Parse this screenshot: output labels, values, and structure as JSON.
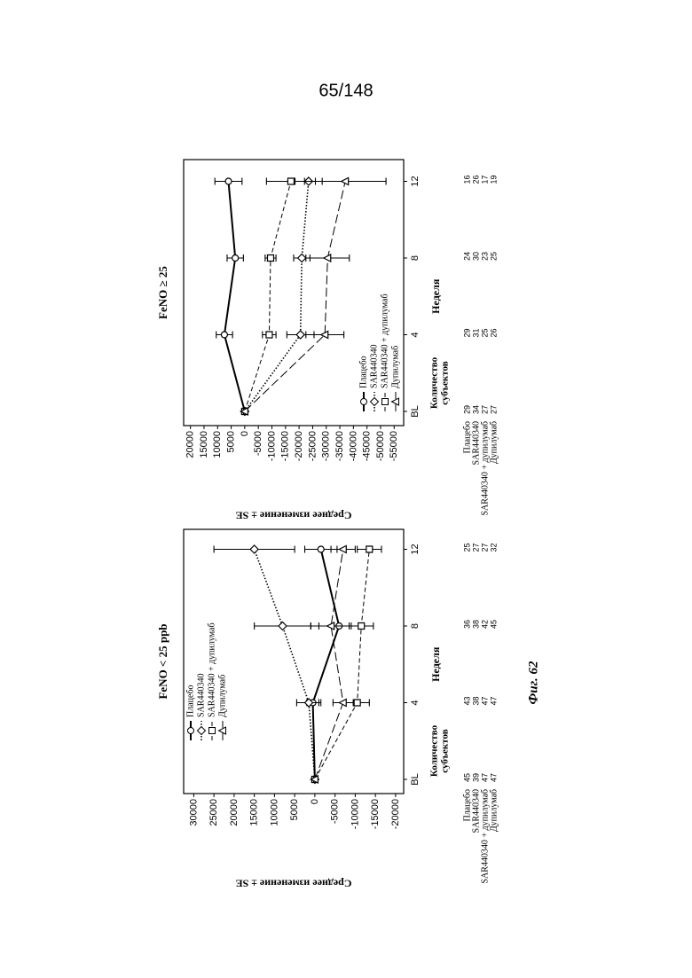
{
  "page_number": "65/148",
  "caption": "Фиг. 62",
  "chart_data": [
    {
      "type": "line",
      "title": "FeNO < 25 ppb",
      "xlabel": "Неделя",
      "ylabel": "Среднее изменение ± SE",
      "categories": [
        "BL",
        "4",
        "8",
        "12"
      ],
      "ylim": [
        -22000,
        32500
      ],
      "yticks": [
        30000,
        25000,
        20000,
        15000,
        10000,
        5000,
        0,
        -5000,
        -10000,
        -15000,
        -20000
      ],
      "legend": "upper left",
      "counts_header": [
        "Количество",
        "субъектов"
      ],
      "series": [
        {
          "name": "Плацебо",
          "color": "#000000",
          "marker": "circle",
          "linestyle": "solid",
          "values": [
            0,
            500,
            -6000,
            -1500
          ],
          "errors": [
            300,
            1500,
            5000,
            4000
          ],
          "counts": [
            45,
            43,
            36,
            25
          ]
        },
        {
          "name": "SAR440340",
          "color": "#000000",
          "marker": "diamond",
          "linestyle": "dotted",
          "values": [
            0,
            1500,
            8000,
            15000
          ],
          "errors": [
            300,
            3000,
            7000,
            10000
          ],
          "counts": [
            39,
            38,
            38,
            27
          ]
        },
        {
          "name": "SAR440340 + дупилумаб",
          "color": "#000000",
          "marker": "square",
          "linestyle": "dashed",
          "values": [
            0,
            -10500,
            -11500,
            -13500
          ],
          "errors": [
            300,
            3000,
            3000,
            3000
          ],
          "counts": [
            47,
            47,
            42,
            27
          ]
        },
        {
          "name": "Дупилумаб",
          "color": "#000000",
          "marker": "triangle",
          "linestyle": "longdash",
          "values": [
            0,
            -7000,
            -4000,
            -7000
          ],
          "errors": [
            300,
            2500,
            5000,
            3000
          ],
          "counts": [
            47,
            47,
            45,
            32
          ]
        }
      ]
    },
    {
      "type": "line",
      "title": "FeNO ≥ 25",
      "xlabel": "Неделя",
      "ylabel": "Среднее изменение ± SE",
      "categories": [
        "BL",
        "4",
        "8",
        "12"
      ],
      "ylim": [
        -58500,
        22500
      ],
      "yticks": [
        20000,
        15000,
        10000,
        5000,
        0,
        -5000,
        -10000,
        -15000,
        -20000,
        -25000,
        -30000,
        -35000,
        -40000,
        -45000,
        -50000,
        -55000
      ],
      "legend": "lower left",
      "counts_header": [
        "Количество",
        "субъектов"
      ],
      "series": [
        {
          "name": "Плацебо",
          "color": "#000000",
          "marker": "circle",
          "linestyle": "solid",
          "values": [
            0,
            7500,
            3500,
            6000
          ],
          "errors": [
            500,
            3000,
            3000,
            5000
          ],
          "counts": [
            29,
            29,
            24,
            16
          ]
        },
        {
          "name": "SAR440340",
          "color": "#000000",
          "marker": "diamond",
          "linestyle": "dotted",
          "values": [
            0,
            -20500,
            -21000,
            -23500
          ],
          "errors": [
            500,
            5000,
            3000,
            5000
          ],
          "counts": [
            34,
            31,
            30,
            26
          ]
        },
        {
          "name": "SAR440340 + дупилумаб",
          "color": "#000000",
          "marker": "square",
          "linestyle": "dashed",
          "values": [
            0,
            -9000,
            -9500,
            -17000
          ],
          "errors": [
            500,
            2500,
            2000,
            9000
          ],
          "counts": [
            27,
            25,
            23,
            17
          ]
        },
        {
          "name": "Дупилумаб",
          "color": "#000000",
          "marker": "triangle",
          "linestyle": "longdash",
          "values": [
            0,
            -29500,
            -30500,
            -37000
          ],
          "errors": [
            500,
            7000,
            8000,
            15000
          ],
          "counts": [
            27,
            26,
            25,
            19
          ]
        }
      ]
    }
  ]
}
